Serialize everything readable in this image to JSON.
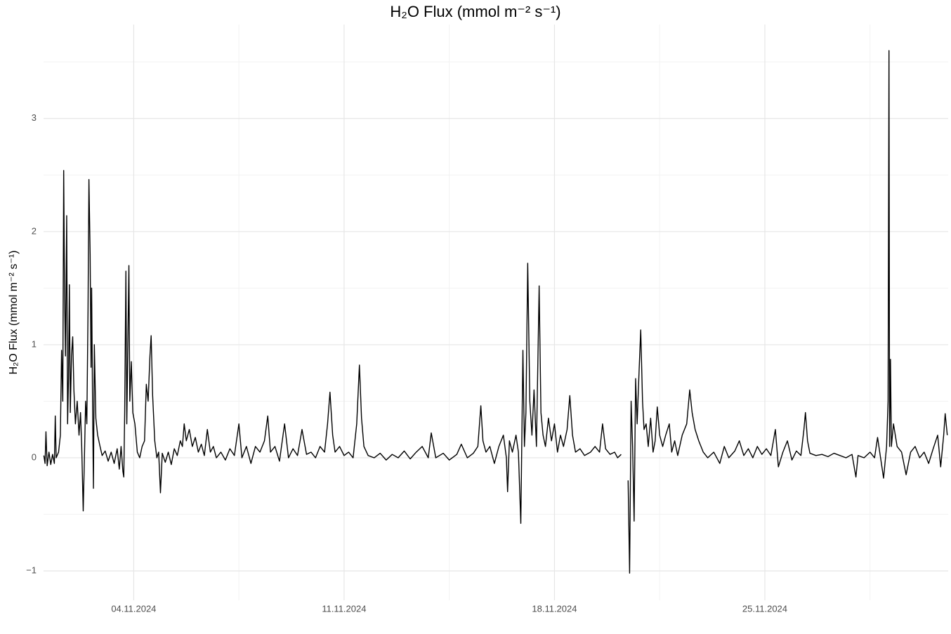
{
  "chart_data": {
    "type": "line",
    "title": "H₂O Flux (mmol m⁻² s⁻¹)",
    "y_label": "H₂O Flux (mmol m⁻² s⁻¹)",
    "color": "#000000",
    "grid": true,
    "xlim": [
      1.0,
      31.1
    ],
    "ylim": [
      -1.26,
      3.83
    ],
    "xticks": [
      {
        "value": 4,
        "label": "04.11.2024"
      },
      {
        "value": 11,
        "label": "11.11.2024"
      },
      {
        "value": 18,
        "label": "18.11.2024"
      },
      {
        "value": 25,
        "label": "25.11.2024"
      }
    ],
    "minor_xticks": [
      0.5,
      7.5,
      14.5,
      21.5,
      28.5
    ],
    "yticks": [
      {
        "value": -1,
        "label": "−1"
      },
      0,
      1,
      2,
      3
    ],
    "minor_yticks": [
      -0.5,
      0.5,
      1.5,
      2.5,
      3.5
    ],
    "x": [
      1.01,
      1.05,
      1.08,
      1.12,
      1.18,
      1.24,
      1.3,
      1.36,
      1.39,
      1.42,
      1.5,
      1.56,
      1.6,
      1.64,
      1.67,
      1.7,
      1.73,
      1.77,
      1.8,
      1.83,
      1.86,
      1.89,
      1.93,
      1.97,
      2.01,
      2.06,
      2.12,
      2.18,
      2.23,
      2.27,
      2.32,
      2.36,
      2.4,
      2.44,
      2.48,
      2.51,
      2.55,
      2.58,
      2.6,
      2.63,
      2.66,
      2.69,
      2.74,
      2.8,
      2.88,
      2.95,
      3.05,
      3.15,
      3.25,
      3.35,
      3.45,
      3.52,
      3.58,
      3.64,
      3.67,
      3.7,
      3.74,
      3.77,
      3.8,
      3.84,
      3.87,
      3.92,
      3.97,
      4.04,
      4.12,
      4.2,
      4.28,
      4.36,
      4.42,
      4.48,
      4.54,
      4.58,
      4.63,
      4.7,
      4.77,
      4.83,
      4.89,
      4.95,
      5.05,
      5.15,
      5.25,
      5.35,
      5.45,
      5.55,
      5.62,
      5.68,
      5.75,
      5.85,
      5.95,
      6.05,
      6.15,
      6.25,
      6.35,
      6.45,
      6.55,
      6.65,
      6.75,
      6.9,
      7.05,
      7.2,
      7.35,
      7.5,
      7.6,
      7.75,
      7.9,
      8.05,
      8.2,
      8.35,
      8.46,
      8.55,
      8.7,
      8.85,
      9.02,
      9.15,
      9.3,
      9.45,
      9.6,
      9.75,
      9.9,
      10.05,
      10.2,
      10.35,
      10.45,
      10.53,
      10.62,
      10.7,
      10.85,
      11.0,
      11.15,
      11.3,
      11.42,
      11.51,
      11.58,
      11.66,
      11.8,
      12.0,
      12.2,
      12.4,
      12.6,
      12.8,
      13.0,
      13.2,
      13.4,
      13.6,
      13.8,
      13.9,
      14.05,
      14.3,
      14.5,
      14.75,
      14.9,
      15.1,
      15.3,
      15.45,
      15.55,
      15.62,
      15.72,
      15.85,
      16.0,
      16.15,
      16.3,
      16.4,
      16.44,
      16.5,
      16.6,
      16.72,
      16.8,
      16.88,
      16.95,
      17.0,
      17.05,
      17.11,
      17.18,
      17.25,
      17.32,
      17.4,
      17.49,
      17.55,
      17.62,
      17.7,
      17.8,
      17.9,
      18.0,
      18.1,
      18.2,
      18.3,
      18.42,
      18.51,
      18.6,
      18.7,
      18.85,
      19.0,
      19.2,
      19.35,
      19.5,
      19.6,
      19.7,
      19.85,
      20.0,
      20.1,
      20.22,
      20.35,
      20.45,
      20.5,
      20.55,
      20.6,
      20.65,
      20.7,
      20.75,
      20.82,
      20.87,
      20.93,
      20.98,
      21.05,
      21.12,
      21.2,
      21.28,
      21.35,
      21.42,
      21.5,
      21.6,
      21.7,
      21.82,
      21.9,
      22.0,
      22.1,
      22.25,
      22.4,
      22.5,
      22.58,
      22.68,
      22.8,
      22.95,
      23.1,
      23.3,
      23.5,
      23.65,
      23.8,
      24.0,
      24.15,
      24.3,
      24.45,
      24.6,
      24.75,
      24.9,
      25.05,
      25.2,
      25.35,
      25.45,
      25.6,
      25.75,
      25.9,
      26.05,
      26.2,
      26.3,
      26.35,
      26.42,
      26.5,
      26.7,
      26.9,
      27.1,
      27.3,
      27.5,
      27.7,
      27.9,
      28.03,
      28.1,
      28.3,
      28.5,
      28.65,
      28.75,
      28.85,
      28.95,
      29.05,
      29.1,
      29.13,
      29.15,
      29.18,
      29.21,
      29.28,
      29.4,
      29.55,
      29.7,
      29.85,
      30.0,
      30.15,
      30.3,
      30.45,
      30.6,
      30.75,
      30.85,
      30.95,
      31.0,
      31.07
    ],
    "values": [
      0.02,
      -0.05,
      0.23,
      -0.07,
      0.05,
      -0.06,
      0.03,
      -0.05,
      0.37,
      0.0,
      0.05,
      0.2,
      0.95,
      0.5,
      2.54,
      1.43,
      0.9,
      2.14,
      0.3,
      0.7,
      1.53,
      0.4,
      0.9,
      1.07,
      0.6,
      0.3,
      0.5,
      0.2,
      0.4,
      0.1,
      -0.47,
      0.0,
      0.5,
      0.3,
      1.3,
      2.46,
      1.8,
      0.8,
      1.5,
      0.5,
      -0.27,
      1.0,
      0.35,
      0.2,
      0.1,
      0.02,
      0.06,
      -0.03,
      0.05,
      -0.05,
      0.08,
      -0.1,
      0.1,
      -0.12,
      -0.17,
      0.4,
      1.65,
      0.3,
      0.9,
      1.7,
      0.5,
      0.85,
      0.4,
      0.3,
      0.05,
      0.0,
      0.1,
      0.15,
      0.65,
      0.5,
      0.9,
      1.08,
      0.55,
      0.15,
      0.0,
      0.05,
      -0.31,
      0.04,
      -0.04,
      0.05,
      -0.06,
      0.08,
      0.02,
      0.15,
      0.1,
      0.3,
      0.15,
      0.25,
      0.1,
      0.18,
      0.05,
      0.12,
      0.02,
      0.25,
      0.05,
      0.1,
      0.0,
      0.05,
      -0.02,
      0.08,
      0.02,
      0.3,
      0.0,
      0.1,
      -0.05,
      0.1,
      0.05,
      0.15,
      0.37,
      0.05,
      0.1,
      -0.03,
      0.3,
      0.0,
      0.08,
      0.02,
      0.25,
      0.03,
      0.05,
      0.0,
      0.1,
      0.05,
      0.3,
      0.58,
      0.2,
      0.05,
      0.1,
      0.02,
      0.05,
      0.0,
      0.3,
      0.82,
      0.35,
      0.1,
      0.02,
      0.0,
      0.04,
      -0.02,
      0.03,
      0.0,
      0.06,
      -0.01,
      0.05,
      0.1,
      0.0,
      0.22,
      0.0,
      0.04,
      -0.02,
      0.03,
      0.12,
      0.0,
      0.04,
      0.1,
      0.46,
      0.15,
      0.05,
      0.1,
      -0.05,
      0.1,
      0.2,
      0.0,
      -0.3,
      0.15,
      0.05,
      0.2,
      0.05,
      -0.58,
      0.95,
      0.1,
      0.4,
      1.72,
      0.5,
      0.2,
      0.6,
      0.1,
      1.52,
      0.4,
      0.2,
      0.1,
      0.35,
      0.15,
      0.3,
      0.05,
      0.2,
      0.1,
      0.25,
      0.55,
      0.2,
      0.05,
      0.08,
      0.02,
      0.05,
      0.1,
      0.05,
      0.3,
      0.08,
      0.03,
      0.05,
      0.0,
      0.03,
      null,
      -0.2,
      -1.02,
      0.5,
      0.1,
      -0.56,
      0.7,
      0.3,
      0.8,
      1.13,
      0.5,
      0.25,
      0.3,
      0.1,
      0.35,
      0.05,
      0.15,
      0.45,
      0.2,
      0.1,
      0.2,
      0.3,
      0.05,
      0.15,
      0.02,
      0.2,
      0.3,
      0.6,
      0.4,
      0.25,
      0.15,
      0.05,
      0.0,
      0.05,
      -0.05,
      0.1,
      0.0,
      0.06,
      0.15,
      0.02,
      0.08,
      0.0,
      0.1,
      0.03,
      0.08,
      0.02,
      0.25,
      -0.08,
      0.05,
      0.15,
      -0.02,
      0.06,
      0.02,
      0.25,
      0.4,
      0.15,
      0.04,
      0.02,
      0.03,
      0.01,
      0.04,
      0.02,
      0.0,
      0.03,
      -0.17,
      0.02,
      0.0,
      0.05,
      0.0,
      0.18,
      0.0,
      -0.18,
      0.1,
      0.5,
      3.6,
      0.1,
      0.87,
      0.1,
      0.3,
      0.1,
      0.05,
      -0.15,
      0.05,
      0.1,
      0.0,
      0.05,
      -0.05,
      0.08,
      0.2,
      -0.08,
      0.2,
      0.39,
      0.2
    ]
  }
}
